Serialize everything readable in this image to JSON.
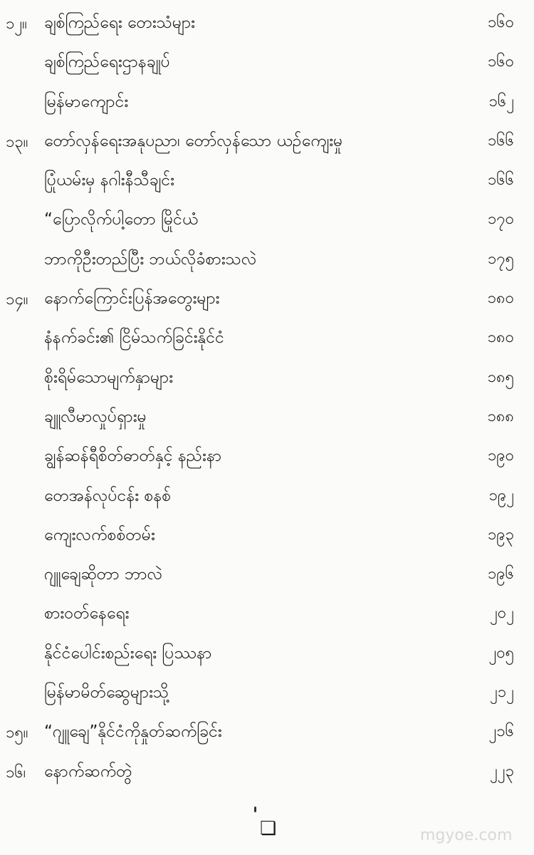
{
  "entries": [
    {
      "num": "၁၂။",
      "title": "ချစ်ကြည်ရေး တေးသံများ",
      "page": "၁၆၀"
    },
    {
      "num": "",
      "title": "ချစ်ကြည်ရေးဌာနချုပ်",
      "page": "၁၆၀"
    },
    {
      "num": "",
      "title": "မြန်မာကျောင်း",
      "page": "၁၆၂"
    },
    {
      "num": "၁၃။",
      "title": "တော်လှန်ရေးအနုပညာ၊ တော်လှန်သော ယဉ်ကျေးမှု",
      "page": "၁၆၆"
    },
    {
      "num": "",
      "title": "ပြုံယမ်းမှ နဂါးနီသီချင်း",
      "page": "၁၆၆"
    },
    {
      "num": "",
      "title": "“ပြောလိုက်ပါ့တော မြိုင်ယံ",
      "page": "၁၇၀"
    },
    {
      "num": "",
      "title": "ဘာကိုဦးတည်ပြီး ဘယ်လိုခံစားသလဲ",
      "page": "၁၇၅"
    },
    {
      "num": "၁၄။",
      "title": "နောက်ကြောင်းပြန်အတွေးများ",
      "page": "၁၈၀"
    },
    {
      "num": "",
      "title": "နံနက်ခင်း၏ ငြိမ်သက်ခြင်းနိုင်ငံ",
      "page": "၁၈၀"
    },
    {
      "num": "",
      "title": "စိုးရိမ်သောမျက်နှာများ",
      "page": "၁၈၅"
    },
    {
      "num": "",
      "title": "ချူလီမာလှုပ်ရှားမှု",
      "page": "၁၈၈"
    },
    {
      "num": "",
      "title": "ချွန်ဆန်ရီစိတ်ဓာတ်နှင့် နည်းနာ",
      "page": "၁၉၀"
    },
    {
      "num": "",
      "title": "တေအန်လုပ်ငန်း စနစ်",
      "page": "၁၉၂"
    },
    {
      "num": "",
      "title": "ကျေးလက်စစ်တမ်း",
      "page": "၁၉၃"
    },
    {
      "num": "",
      "title": "ဂျူချေဆိုတာ ဘာလဲ",
      "page": "၁၉၆"
    },
    {
      "num": "",
      "title": "စားဝတ်နေရေး",
      "page": "၂၀၂"
    },
    {
      "num": "",
      "title": "နိုင်ငံပေါင်းစည်းရေး ပြဿနာ",
      "page": "၂၀၅"
    },
    {
      "num": "",
      "title": "မြန်မာမိတ်ဆွေများသို့",
      "page": "၂၁၂"
    },
    {
      "num": "၁၅။",
      "title": "“ဂျူချေ”နိုင်ငံကိုနှုတ်ဆက်ခြင်း",
      "page": "၂၁၆"
    },
    {
      "num": "၁၆၊",
      "title": "နောက်ဆက်တွဲ",
      "page": "၂၂၃"
    }
  ],
  "end_mark_icon": "square-box-icon",
  "watermark": "mgyoe.com"
}
